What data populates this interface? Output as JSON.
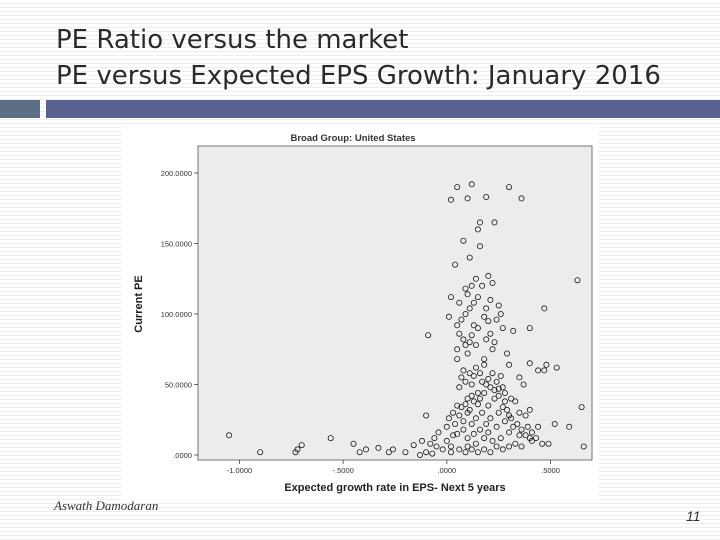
{
  "slide": {
    "title_line1": "PE Ratio versus the market",
    "title_line2": "PE versus Expected EPS Growth: January 2016",
    "author": "Aswath Damodaran",
    "page_number": "11",
    "accent_color": "#58618f"
  },
  "chart_data": {
    "type": "scatter",
    "title": "Broad Group: United States",
    "xlabel": "Expected growth rate in EPS- Next 5 years",
    "ylabel": "Current PE",
    "xlim": [
      -1.2,
      0.7
    ],
    "ylim": [
      0,
      200
    ],
    "x_ticks": [
      {
        "value": -1.0,
        "label": "-1.0000"
      },
      {
        "value": -0.5,
        "label": "-.5000"
      },
      {
        "value": 0.0,
        "label": ".0000"
      },
      {
        "value": 0.5,
        "label": ".5000"
      }
    ],
    "y_ticks": [
      {
        "value": 0,
        "label": ".0000"
      },
      {
        "value": 50,
        "label": "50.0000"
      },
      {
        "value": 100,
        "label": "100.0000"
      },
      {
        "value": 150,
        "label": "150.0000"
      },
      {
        "value": 200,
        "label": "200.0000"
      }
    ],
    "grid": false,
    "series": [
      {
        "marker": "open-circle",
        "points": [
          [
            0.05,
            190
          ],
          [
            0.12,
            192
          ],
          [
            0.3,
            190
          ],
          [
            0.19,
            183
          ],
          [
            0.1,
            182
          ],
          [
            0.36,
            182
          ],
          [
            0.02,
            181
          ],
          [
            0.16,
            165
          ],
          [
            0.23,
            165
          ],
          [
            0.15,
            160
          ],
          [
            0.08,
            152
          ],
          [
            0.16,
            148
          ],
          [
            0.11,
            140
          ],
          [
            0.04,
            135
          ],
          [
            0.14,
            125
          ],
          [
            0.2,
            127
          ],
          [
            0.22,
            122
          ],
          [
            0.12,
            120
          ],
          [
            0.17,
            120
          ],
          [
            0.63,
            124
          ],
          [
            0.02,
            112
          ],
          [
            0.1,
            114
          ],
          [
            0.15,
            112
          ],
          [
            0.21,
            110
          ],
          [
            0.25,
            106
          ],
          [
            0.47,
            104
          ],
          [
            0.01,
            98
          ],
          [
            0.09,
            100
          ],
          [
            0.18,
            98
          ],
          [
            0.2,
            95
          ],
          [
            0.05,
            92
          ],
          [
            0.15,
            90
          ],
          [
            0.12,
            85
          ],
          [
            0.27,
            90
          ],
          [
            0.32,
            88
          ],
          [
            0.4,
            90
          ],
          [
            -0.09,
            85
          ],
          [
            0.08,
            82
          ],
          [
            0.14,
            78
          ],
          [
            0.1,
            72
          ],
          [
            0.22,
            75
          ],
          [
            0.4,
            65
          ],
          [
            0.44,
            60
          ],
          [
            0.48,
            64
          ],
          [
            0.47,
            60
          ],
          [
            0.53,
            62
          ],
          [
            0.05,
            68
          ],
          [
            0.18,
            64
          ],
          [
            0.3,
            64
          ],
          [
            0.35,
            55
          ],
          [
            0.37,
            50
          ],
          [
            0.25,
            47
          ],
          [
            0.27,
            48
          ],
          [
            0.31,
            40
          ],
          [
            0.33,
            38
          ],
          [
            0.35,
            30
          ],
          [
            0.38,
            28
          ],
          [
            0.4,
            32
          ],
          [
            0.52,
            22
          ],
          [
            0.59,
            20
          ],
          [
            0.65,
            34
          ],
          [
            0.66,
            6
          ],
          [
            0.46,
            8
          ],
          [
            0.49,
            8
          ],
          [
            0.35,
            14
          ],
          [
            0.4,
            12
          ],
          [
            0.41,
            10
          ],
          [
            -1.05,
            14
          ],
          [
            -0.9,
            2
          ],
          [
            -0.72,
            4
          ],
          [
            -0.7,
            7
          ],
          [
            -0.73,
            2
          ],
          [
            -0.56,
            12
          ],
          [
            -0.45,
            8
          ],
          [
            -0.42,
            2
          ],
          [
            -0.39,
            4
          ],
          [
            -0.33,
            5
          ],
          [
            -0.26,
            4
          ],
          [
            -0.2,
            2
          ],
          [
            -0.28,
            2
          ],
          [
            -0.16,
            7
          ],
          [
            -0.12,
            10
          ],
          [
            -0.08,
            8
          ],
          [
            -0.05,
            6
          ],
          [
            -0.02,
            4
          ],
          [
            -0.1,
            2
          ],
          [
            -0.13,
            0
          ],
          [
            -0.07,
            1
          ],
          [
            -0.1,
            28
          ],
          [
            -0.04,
            16
          ],
          [
            -0.06,
            12
          ],
          [
            0.0,
            20
          ],
          [
            0.0,
            10
          ],
          [
            0.02,
            6
          ],
          [
            0.05,
            35
          ],
          [
            0.05,
            15
          ],
          [
            0.08,
            24
          ],
          [
            0.08,
            18
          ],
          [
            0.1,
            40
          ],
          [
            0.1,
            30
          ],
          [
            0.1,
            12
          ],
          [
            0.1,
            6
          ],
          [
            0.12,
            50
          ],
          [
            0.12,
            42
          ],
          [
            0.12,
            22
          ],
          [
            0.13,
            15
          ],
          [
            0.14,
            26
          ],
          [
            0.14,
            8
          ],
          [
            0.15,
            36
          ],
          [
            0.16,
            18
          ],
          [
            0.17,
            30
          ],
          [
            0.18,
            12
          ],
          [
            0.18,
            44
          ],
          [
            0.19,
            22
          ],
          [
            0.2,
            35
          ],
          [
            0.2,
            16
          ],
          [
            0.21,
            26
          ],
          [
            0.22,
            10
          ],
          [
            0.23,
            40
          ],
          [
            0.24,
            20
          ],
          [
            0.25,
            30
          ],
          [
            0.26,
            12
          ],
          [
            0.28,
            24
          ],
          [
            0.28,
            38
          ],
          [
            0.3,
            16
          ],
          [
            0.3,
            28
          ],
          [
            0.32,
            20
          ],
          [
            0.06,
            48
          ],
          [
            0.07,
            55
          ],
          [
            0.08,
            60
          ],
          [
            0.09,
            52
          ],
          [
            0.11,
            58
          ],
          [
            0.13,
            56
          ],
          [
            0.14,
            62
          ],
          [
            0.16,
            58
          ],
          [
            0.17,
            52
          ],
          [
            0.18,
            68
          ],
          [
            0.2,
            54
          ],
          [
            0.22,
            58
          ],
          [
            0.24,
            52
          ],
          [
            0.26,
            56
          ],
          [
            0.28,
            44
          ],
          [
            0.01,
            26
          ],
          [
            0.03,
            30
          ],
          [
            0.04,
            22
          ],
          [
            0.06,
            28
          ],
          [
            0.07,
            34
          ],
          [
            0.09,
            36
          ],
          [
            0.11,
            32
          ],
          [
            0.13,
            38
          ],
          [
            0.15,
            44
          ],
          [
            0.16,
            40
          ],
          [
            0.19,
            50
          ],
          [
            0.21,
            48
          ],
          [
            0.23,
            46
          ],
          [
            0.25,
            42
          ],
          [
            0.27,
            34
          ],
          [
            0.29,
            32
          ],
          [
            0.31,
            26
          ],
          [
            0.34,
            22
          ],
          [
            0.36,
            18
          ],
          [
            0.38,
            14
          ],
          [
            0.39,
            20
          ],
          [
            0.41,
            16
          ],
          [
            0.43,
            12
          ],
          [
            0.44,
            20
          ],
          [
            0.03,
            14
          ],
          [
            0.02,
            2
          ],
          [
            0.06,
            4
          ],
          [
            0.09,
            2
          ],
          [
            0.12,
            4
          ],
          [
            0.15,
            2
          ],
          [
            0.18,
            4
          ],
          [
            0.21,
            2
          ],
          [
            0.24,
            6
          ],
          [
            0.27,
            4
          ],
          [
            0.3,
            6
          ],
          [
            0.33,
            8
          ],
          [
            0.36,
            6
          ],
          [
            0.05,
            75
          ],
          [
            0.09,
            78
          ],
          [
            0.11,
            80
          ],
          [
            0.19,
            82
          ],
          [
            0.21,
            86
          ],
          [
            0.23,
            80
          ],
          [
            0.06,
            86
          ],
          [
            0.13,
            92
          ],
          [
            0.07,
            96
          ],
          [
            0.11,
            104
          ],
          [
            0.13,
            108
          ],
          [
            0.06,
            108
          ],
          [
            0.09,
            118
          ],
          [
            0.19,
            104
          ],
          [
            0.24,
            96
          ],
          [
            0.26,
            100
          ],
          [
            0.29,
            72
          ]
        ]
      }
    ]
  }
}
